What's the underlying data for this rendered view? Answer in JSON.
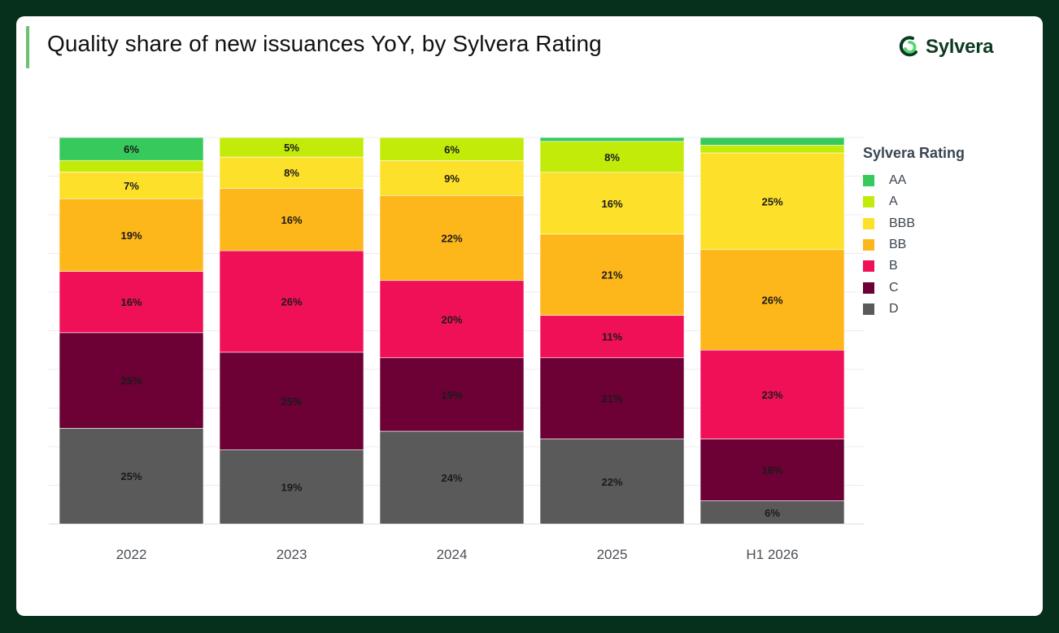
{
  "title": "Quality share of new issuances YoY, by Sylvera Rating",
  "logo": {
    "text": "Sylvera",
    "icon": "sylvera-logo-icon",
    "color": "#0e3a24"
  },
  "legend": {
    "title": "Sylvera Rating"
  },
  "chart_data": {
    "type": "bar",
    "stacked": true,
    "normalized": true,
    "categories": [
      "2022",
      "2023",
      "2024",
      "2025",
      "H1 2026"
    ],
    "series": [
      {
        "name": "D",
        "color": "#5a5a5a",
        "values": [
          25,
          19,
          24,
          22,
          6
        ],
        "labels": [
          "25%",
          "19%",
          "24%",
          "22%",
          "6%"
        ]
      },
      {
        "name": "C",
        "color": "#6d0035",
        "values": [
          25,
          25,
          19,
          21,
          16
        ],
        "labels": [
          "25%",
          "25%",
          "19%",
          "21%",
          "16%"
        ]
      },
      {
        "name": "B",
        "color": "#ef1058",
        "values": [
          16,
          26,
          20,
          11,
          23
        ],
        "labels": [
          "16%",
          "26%",
          "20%",
          "11%",
          "23%"
        ]
      },
      {
        "name": "BB",
        "color": "#fdb71a",
        "values": [
          19,
          16,
          22,
          21,
          26
        ],
        "labels": [
          "19%",
          "16%",
          "22%",
          "21%",
          "26%"
        ]
      },
      {
        "name": "BBB",
        "color": "#fde02a",
        "values": [
          7,
          8,
          9,
          16,
          25
        ],
        "labels": [
          "7%",
          "8%",
          "9%",
          "16%",
          "25%"
        ]
      },
      {
        "name": "A",
        "color": "#c2eb0a",
        "values": [
          3,
          5,
          6,
          8,
          2
        ],
        "labels": [
          "",
          "5%",
          "6%",
          "8%",
          ""
        ]
      },
      {
        "name": "AA",
        "color": "#37c95c",
        "values": [
          6,
          0,
          0,
          1,
          2
        ],
        "labels": [
          "6%",
          "",
          "",
          "",
          ""
        ]
      }
    ],
    "legend_order": [
      "AA",
      "A",
      "BBB",
      "BB",
      "B",
      "C",
      "D"
    ],
    "ylim": [
      0,
      100
    ],
    "grid": true,
    "legend_position": "right"
  }
}
